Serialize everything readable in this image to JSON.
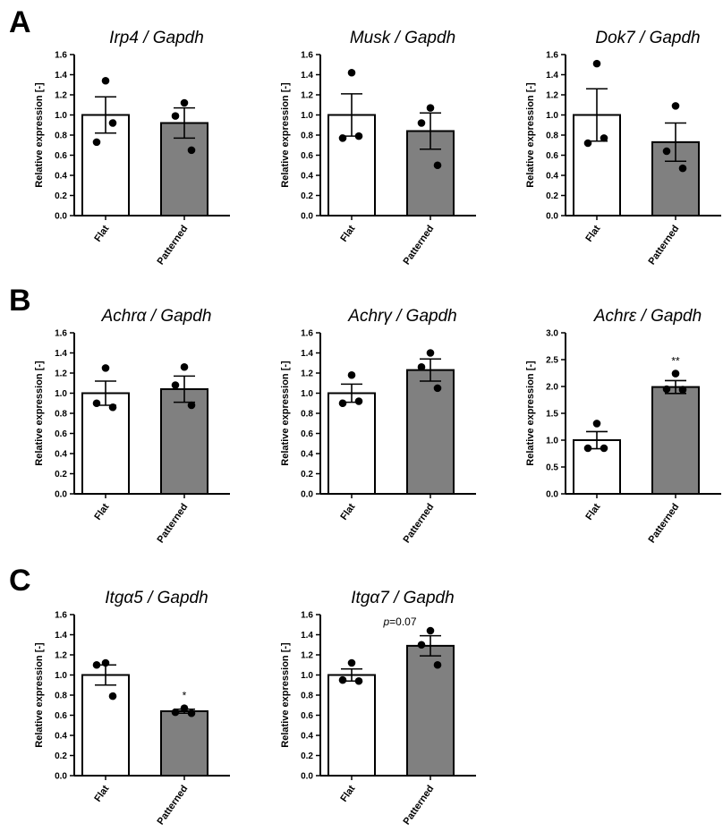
{
  "panels": [
    "A",
    "B",
    "C"
  ],
  "chart_data": [
    {
      "type": "bar",
      "panel": "A",
      "title_gene": "Irp4",
      "title_suffix": " / Gapdh",
      "ylabel": "Relative expression [-]",
      "ylim": [
        0,
        1.6
      ],
      "yticks": [
        0.0,
        0.2,
        0.4,
        0.6,
        0.8,
        1.0,
        1.2,
        1.4,
        1.6
      ],
      "categories": [
        "Flat",
        "Patterned"
      ],
      "values": [
        1.0,
        0.92
      ],
      "sem": [
        0.18,
        0.15
      ],
      "points": [
        [
          1.34,
          0.73,
          0.92
        ],
        [
          1.12,
          0.99,
          0.65
        ]
      ],
      "annotations": [],
      "colors": [
        "#ffffff",
        "#808080"
      ]
    },
    {
      "type": "bar",
      "panel": "A",
      "title_gene": "Musk",
      "title_suffix": " / Gapdh",
      "ylabel": "Relative expression [-]",
      "ylim": [
        0,
        1.6
      ],
      "yticks": [
        0.0,
        0.2,
        0.4,
        0.6,
        0.8,
        1.0,
        1.2,
        1.4,
        1.6
      ],
      "categories": [
        "Flat",
        "Patterned"
      ],
      "values": [
        1.0,
        0.84
      ],
      "sem": [
        0.21,
        0.18
      ],
      "points": [
        [
          1.42,
          0.77,
          0.79
        ],
        [
          1.07,
          0.92,
          0.5
        ]
      ],
      "annotations": [],
      "colors": [
        "#ffffff",
        "#808080"
      ]
    },
    {
      "type": "bar",
      "panel": "A",
      "title_gene": "Dok7",
      "title_suffix": " / Gapdh",
      "ylabel": "Relative expression [-]",
      "ylim": [
        0,
        1.6
      ],
      "yticks": [
        0.0,
        0.2,
        0.4,
        0.6,
        0.8,
        1.0,
        1.2,
        1.4,
        1.6
      ],
      "categories": [
        "Flat",
        "Patterned"
      ],
      "values": [
        1.0,
        0.73
      ],
      "sem": [
        0.26,
        0.19
      ],
      "points": [
        [
          1.51,
          0.72,
          0.77
        ],
        [
          1.09,
          0.64,
          0.47
        ]
      ],
      "annotations": [],
      "colors": [
        "#ffffff",
        "#808080"
      ]
    },
    {
      "type": "bar",
      "panel": "B",
      "title_gene": "Achrα",
      "title_suffix": " / Gapdh",
      "ylabel": "Relative expression [-]",
      "ylim": [
        0,
        1.6
      ],
      "yticks": [
        0.0,
        0.2,
        0.4,
        0.6,
        0.8,
        1.0,
        1.2,
        1.4,
        1.6
      ],
      "categories": [
        "Flat",
        "Patterned"
      ],
      "values": [
        1.0,
        1.04
      ],
      "sem": [
        0.12,
        0.13
      ],
      "points": [
        [
          1.25,
          0.9,
          0.86
        ],
        [
          1.26,
          1.08,
          0.88
        ]
      ],
      "annotations": [],
      "colors": [
        "#ffffff",
        "#808080"
      ]
    },
    {
      "type": "bar",
      "panel": "B",
      "title_gene": "Achrγ",
      "title_suffix": " / Gapdh",
      "ylabel": "Relative expression [-]",
      "ylim": [
        0,
        1.6
      ],
      "yticks": [
        0.0,
        0.2,
        0.4,
        0.6,
        0.8,
        1.0,
        1.2,
        1.4,
        1.6
      ],
      "categories": [
        "Flat",
        "Patterned"
      ],
      "values": [
        1.0,
        1.23
      ],
      "sem": [
        0.09,
        0.11
      ],
      "points": [
        [
          1.18,
          0.9,
          0.92
        ],
        [
          1.4,
          1.26,
          1.05
        ]
      ],
      "annotations": [],
      "colors": [
        "#ffffff",
        "#808080"
      ]
    },
    {
      "type": "bar",
      "panel": "B",
      "title_gene": "Achrε",
      "title_suffix": " / Gapdh",
      "ylabel": "Relative expression [-]",
      "ylim": [
        0,
        3.0
      ],
      "yticks": [
        0.0,
        0.5,
        1.0,
        1.5,
        2.0,
        2.5,
        3.0
      ],
      "categories": [
        "Flat",
        "Patterned"
      ],
      "values": [
        1.0,
        1.99
      ],
      "sem": [
        0.16,
        0.12
      ],
      "points": [
        [
          1.31,
          0.85,
          0.85
        ],
        [
          2.24,
          1.95,
          1.94
        ]
      ],
      "annotations": [
        {
          "category": "Patterned",
          "text": "**"
        }
      ],
      "colors": [
        "#ffffff",
        "#808080"
      ]
    },
    {
      "type": "bar",
      "panel": "C",
      "title_gene": "Itgα5",
      "title_suffix": " / Gapdh",
      "ylabel": "Relative expression [-]",
      "ylim": [
        0,
        1.6
      ],
      "yticks": [
        0.0,
        0.2,
        0.4,
        0.6,
        0.8,
        1.0,
        1.2,
        1.4,
        1.6
      ],
      "categories": [
        "Flat",
        "Patterned"
      ],
      "values": [
        1.0,
        0.64
      ],
      "sem": [
        0.1,
        0.02
      ],
      "points": [
        [
          1.12,
          1.1,
          0.79
        ],
        [
          0.67,
          0.63,
          0.62
        ]
      ],
      "annotations": [
        {
          "category": "Patterned",
          "text": "*"
        }
      ],
      "colors": [
        "#ffffff",
        "#808080"
      ]
    },
    {
      "type": "bar",
      "panel": "C",
      "title_gene": "Itgα7",
      "title_suffix": " / Gapdh",
      "ylabel": "Relative expression [-]",
      "ylim": [
        0,
        1.6
      ],
      "yticks": [
        0.0,
        0.2,
        0.4,
        0.6,
        0.8,
        1.0,
        1.2,
        1.4,
        1.6
      ],
      "categories": [
        "Flat",
        "Patterned"
      ],
      "values": [
        1.0,
        1.29
      ],
      "sem": [
        0.06,
        0.1
      ],
      "points": [
        [
          1.12,
          0.95,
          0.94
        ],
        [
          1.44,
          1.3,
          1.1
        ]
      ],
      "annotations": [
        {
          "category": "between",
          "text_italic": "p",
          "text": "=0.07"
        }
      ],
      "colors": [
        "#ffffff",
        "#808080"
      ]
    }
  ]
}
